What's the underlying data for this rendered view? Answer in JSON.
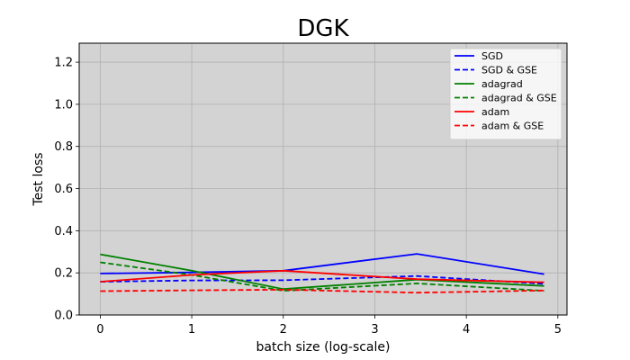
{
  "chart_data": {
    "type": "line",
    "title": "DGK",
    "xlabel": "batch size (log-scale)",
    "ylabel": "Test loss",
    "xlim": [
      -0.23,
      5.1
    ],
    "ylim": [
      0.0,
      1.29
    ],
    "xticks": [
      0,
      1,
      2,
      3,
      4,
      5
    ],
    "xtick_labels": [
      "0",
      "1",
      "2",
      "3",
      "4",
      "5"
    ],
    "yticks": [
      0.0,
      0.2,
      0.4,
      0.6,
      0.8,
      1.0,
      1.2
    ],
    "ytick_labels": [
      "0.0",
      "0.2",
      "0.4",
      "0.6",
      "0.8",
      "1.0",
      "1.2"
    ],
    "grid": true,
    "legend_position": "top-right",
    "x": [
      0,
      1.0,
      2.0,
      3.46,
      4.85
    ],
    "series": [
      {
        "name": "SGD",
        "values": [
          0.197,
          0.202,
          0.21,
          0.29,
          0.194
        ],
        "color": "#0000ff",
        "dash": "solid"
      },
      {
        "name": "SGD & GSE",
        "values": [
          0.158,
          0.164,
          0.165,
          0.185,
          0.148
        ],
        "color": "#0000ff",
        "dash": "dashed"
      },
      {
        "name": "adagrad",
        "values": [
          0.288,
          0.21,
          0.123,
          0.168,
          0.138
        ],
        "color": "#008000",
        "dash": "solid"
      },
      {
        "name": "adagrad & GSE",
        "values": [
          0.25,
          0.19,
          0.115,
          0.15,
          0.115
        ],
        "color": "#008000",
        "dash": "dashed"
      },
      {
        "name": "adam",
        "values": [
          0.158,
          0.19,
          0.21,
          0.17,
          0.155
        ],
        "color": "#ff0000",
        "dash": "solid"
      },
      {
        "name": "adam & GSE",
        "values": [
          0.113,
          0.117,
          0.12,
          0.106,
          0.116
        ],
        "color": "#ff0000",
        "dash": "dashed"
      }
    ]
  }
}
